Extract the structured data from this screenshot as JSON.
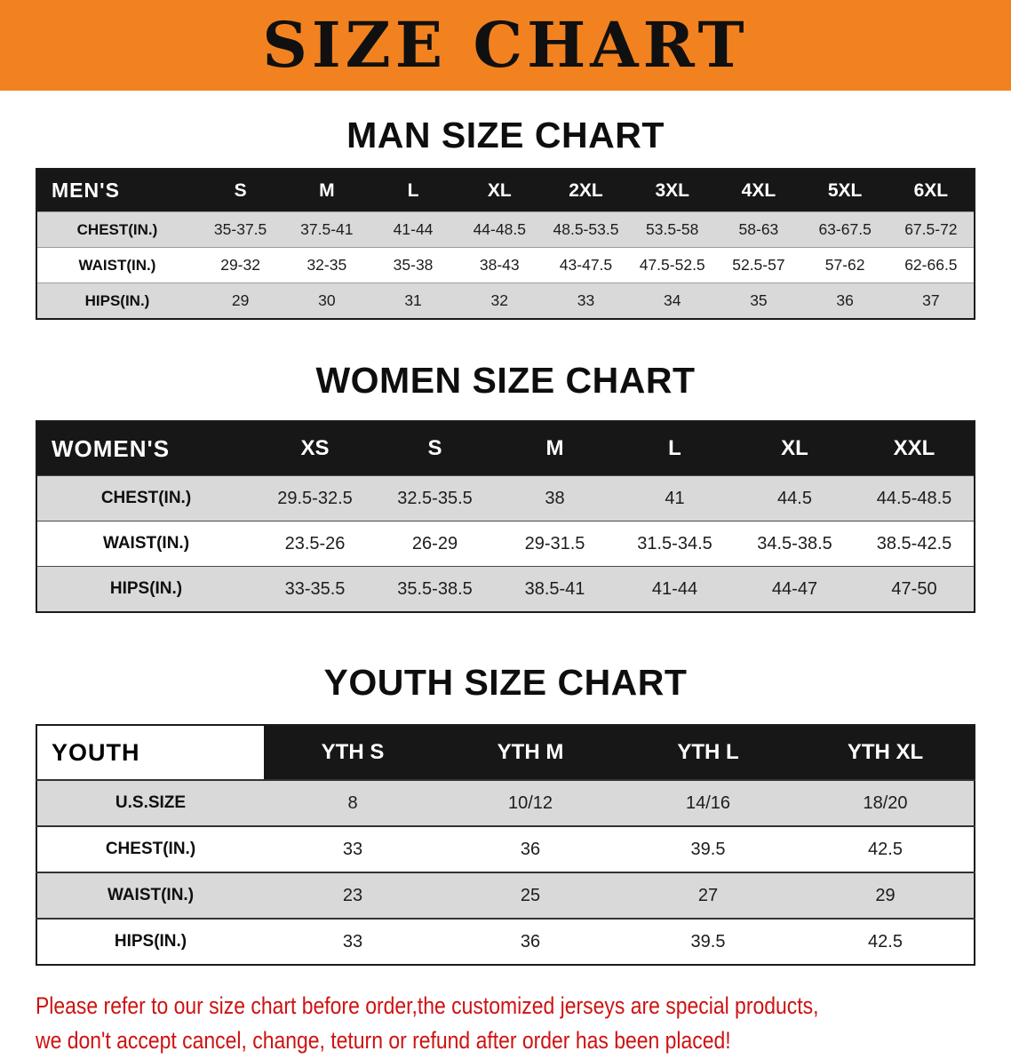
{
  "banner": {
    "title": "SIZE CHART",
    "bg_color": "#F28220"
  },
  "sections": [
    {
      "id": "men",
      "heading": "MAN SIZE CHART",
      "header": [
        "MEN'S",
        "S",
        "M",
        "L",
        "XL",
        "2XL",
        "3XL",
        "4XL",
        "5XL",
        "6XL"
      ],
      "rows": [
        [
          "CHEST(IN.)",
          "35-37.5",
          "37.5-41",
          "41-44",
          "44-48.5",
          "48.5-53.5",
          "53.5-58",
          "58-63",
          "63-67.5",
          "67.5-72"
        ],
        [
          "WAIST(IN.)",
          "29-32",
          "32-35",
          "35-38",
          "38-43",
          "43-47.5",
          "47.5-52.5",
          "52.5-57",
          "57-62",
          "62-66.5"
        ],
        [
          "HIPS(IN.)",
          "29",
          "30",
          "31",
          "32",
          "33",
          "34",
          "35",
          "36",
          "37"
        ]
      ]
    },
    {
      "id": "women",
      "heading": "WOMEN SIZE CHART",
      "header": [
        "WOMEN'S",
        "XS",
        "S",
        "M",
        "L",
        "XL",
        "XXL"
      ],
      "rows": [
        [
          "CHEST(IN.)",
          "29.5-32.5",
          "32.5-35.5",
          "38",
          "41",
          "44.5",
          "44.5-48.5"
        ],
        [
          "WAIST(IN.)",
          "23.5-26",
          "26-29",
          "29-31.5",
          "31.5-34.5",
          "34.5-38.5",
          "38.5-42.5"
        ],
        [
          "HIPS(IN.)",
          "33-35.5",
          "35.5-38.5",
          "38.5-41",
          "41-44",
          "44-47",
          "47-50"
        ]
      ]
    },
    {
      "id": "youth",
      "heading": "YOUTH SIZE CHART",
      "header": [
        "YOUTH",
        "YTH S",
        "YTH M",
        "YTH L",
        "YTH XL"
      ],
      "rows": [
        [
          "U.S.SIZE",
          "8",
          "10/12",
          "14/16",
          "18/20"
        ],
        [
          "CHEST(IN.)",
          "33",
          "36",
          "39.5",
          "42.5"
        ],
        [
          "WAIST(IN.)",
          "23",
          "25",
          "27",
          "29"
        ],
        [
          "HIPS(IN.)",
          "33",
          "36",
          "39.5",
          "42.5"
        ]
      ]
    }
  ],
  "disclaimer": {
    "color": "#CE1212",
    "line1": "Please refer to our size chart before order,the customized jerseys are special products,",
    "line2": "we don't accept cancel, change, teturn or refund after order has been placed!"
  }
}
